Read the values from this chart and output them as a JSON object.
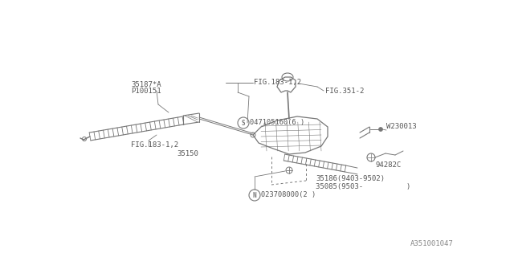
{
  "bg_color": "#ffffff",
  "line_color": "#777777",
  "text_color": "#555555",
  "fig_width": 6.4,
  "fig_height": 3.2,
  "dpi": 100,
  "watermark": "A351001047",
  "labels": {
    "fig183_top": "FIG.183-1,2",
    "label_35187": "35187*A",
    "label_P100151": "P100151",
    "label_S047": "047105160(6 )",
    "fig183_bot": "FIG.183-1,2",
    "label_35150": "35150",
    "fig351": "FIG.351-2",
    "label_W230013": "W230013",
    "label_94282C": "94282C",
    "label_N023": "023708000(2 )",
    "label_35186": "35186(9403-9502)",
    "label_35085": "35085(9503-          )"
  }
}
